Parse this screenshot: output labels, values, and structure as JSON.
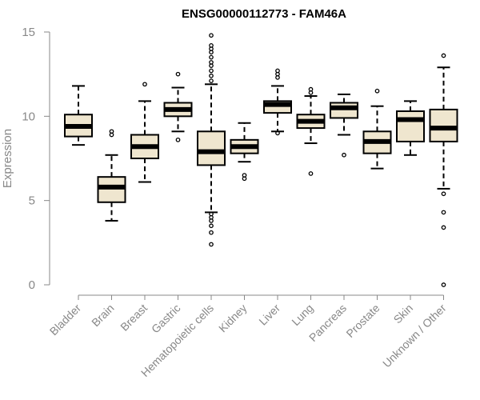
{
  "chart_data": {
    "type": "boxplot",
    "title": "ENSG00000112773 - FAM46A",
    "xlabel": "",
    "ylabel": "Expression",
    "ylim": [
      0,
      15
    ],
    "yticks": [
      0,
      5,
      10,
      15
    ],
    "box_fill": "#efe6cf",
    "categories": [
      "Bladder",
      "Brain",
      "Breast",
      "Gastric",
      "Hematopoietic cells",
      "Kidney",
      "Liver",
      "Lung",
      "Pancreas",
      "Prostate",
      "Skin",
      "Unknown / Other"
    ],
    "boxes": [
      {
        "name": "Bladder",
        "wlo": 8.3,
        "q1": 8.8,
        "median": 9.4,
        "q3": 10.1,
        "whi": 11.8,
        "outliers": []
      },
      {
        "name": "Brain",
        "wlo": 3.8,
        "q1": 4.9,
        "median": 5.8,
        "q3": 6.4,
        "whi": 7.7,
        "outliers": [
          8.9,
          9.1
        ]
      },
      {
        "name": "Breast",
        "wlo": 6.1,
        "q1": 7.5,
        "median": 8.2,
        "q3": 8.9,
        "whi": 10.9,
        "outliers": [
          11.9
        ]
      },
      {
        "name": "Gastric",
        "wlo": 9.1,
        "q1": 10.0,
        "median": 10.4,
        "q3": 10.8,
        "whi": 11.7,
        "outliers": [
          8.6,
          12.5
        ]
      },
      {
        "name": "Hematopoietic cells",
        "wlo": 4.3,
        "q1": 7.1,
        "median": 7.9,
        "q3": 9.1,
        "whi": 11.9,
        "outliers": [
          2.4,
          3.1,
          3.5,
          3.8,
          4.0,
          4.2,
          12.1,
          12.4,
          12.7,
          13.0,
          13.2,
          13.5,
          13.8,
          14.0,
          14.2,
          14.8
        ]
      },
      {
        "name": "Kidney",
        "wlo": 7.3,
        "q1": 7.8,
        "median": 8.2,
        "q3": 8.6,
        "whi": 9.6,
        "outliers": [
          6.3,
          6.5
        ]
      },
      {
        "name": "Liver",
        "wlo": 9.1,
        "q1": 10.2,
        "median": 10.7,
        "q3": 10.9,
        "whi": 11.8,
        "outliers": [
          9.0,
          12.3,
          12.5,
          12.7
        ]
      },
      {
        "name": "Lung",
        "wlo": 8.4,
        "q1": 9.3,
        "median": 9.7,
        "q3": 10.1,
        "whi": 11.2,
        "outliers": [
          6.6,
          11.4,
          11.6
        ]
      },
      {
        "name": "Pancreas",
        "wlo": 8.9,
        "q1": 9.9,
        "median": 10.5,
        "q3": 10.8,
        "whi": 11.3,
        "outliers": [
          7.7
        ]
      },
      {
        "name": "Prostate",
        "wlo": 6.9,
        "q1": 7.8,
        "median": 8.5,
        "q3": 9.1,
        "whi": 10.6,
        "outliers": [
          11.5
        ]
      },
      {
        "name": "Skin",
        "wlo": 7.7,
        "q1": 8.5,
        "median": 9.8,
        "q3": 10.3,
        "whi": 10.9,
        "outliers": []
      },
      {
        "name": "Unknown / Other",
        "wlo": 5.7,
        "q1": 8.5,
        "median": 9.3,
        "q3": 10.4,
        "whi": 12.9,
        "outliers": [
          0.0,
          3.4,
          4.3,
          5.4,
          13.6
        ]
      }
    ]
  }
}
